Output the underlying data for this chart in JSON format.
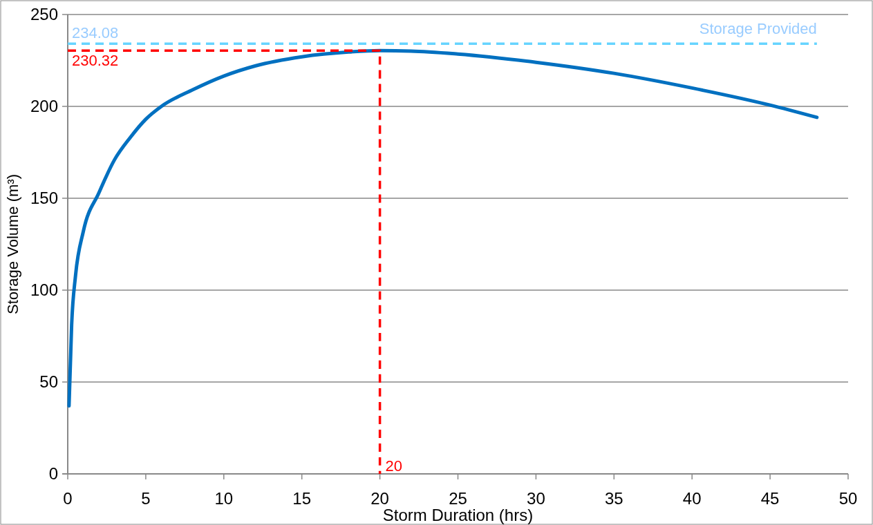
{
  "chart_data": {
    "type": "line",
    "xlabel": "Storm Duration (hrs)",
    "ylabel": "Storage Volume (m³)",
    "xlim": [
      0,
      50
    ],
    "xticks": [
      0,
      5,
      10,
      15,
      20,
      25,
      30,
      35,
      40,
      45,
      50
    ],
    "ylim": [
      0,
      250
    ],
    "yticks": [
      0,
      50,
      100,
      150,
      200,
      250
    ],
    "grid": "y",
    "marker": "none",
    "series": [
      {
        "color": "#0070c0",
        "line_style": "solid",
        "x": [
          0.083,
          0.25,
          0.5,
          1,
          2,
          3,
          4,
          5,
          6,
          8,
          10,
          12,
          15,
          18,
          20,
          22,
          25,
          30,
          35,
          40,
          45,
          48
        ],
        "values": [
          37,
          81,
          108,
          132,
          153,
          171,
          183,
          193,
          200,
          209,
          216.5,
          222,
          227,
          229.6,
          230.32,
          230.1,
          228.5,
          224,
          218,
          210,
          200.7,
          194
        ]
      },
      {
        "color": "#ff0000",
        "line_style": "dashed",
        "x": [
          0,
          20,
          20
        ],
        "values": [
          230.32,
          230.32,
          0
        ]
      },
      {
        "name": "Storage Provided",
        "color": "#66d4ff",
        "line_style": "dashed",
        "x": [
          0,
          48
        ],
        "values": [
          234.08,
          234.08
        ]
      }
    ],
    "annotations": [
      {
        "text": "234.08",
        "y": 234.08
      },
      {
        "text": "230.32",
        "y": 230.32
      },
      {
        "text": "20",
        "x": 20
      }
    ]
  }
}
